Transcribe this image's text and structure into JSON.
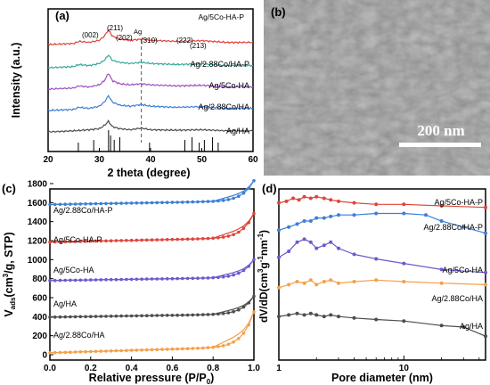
{
  "chart_data": [
    {
      "panel": "(a)",
      "type": "line",
      "xlabel": "2 theta (degree)",
      "ylabel": "Intensity (a.u.)",
      "xlim": [
        20,
        60
      ],
      "xticks": [
        20,
        30,
        40,
        50,
        60
      ],
      "series": [
        {
          "name": "Ag/HA",
          "color": "#4d4d4d",
          "x": [
            20,
            25,
            28,
            30,
            31,
            31.8,
            32.5,
            34,
            36,
            38.2,
            40,
            45,
            50,
            55,
            60
          ],
          "y": [
            0,
            0.5,
            1,
            1.5,
            3,
            5,
            2.5,
            1.5,
            1,
            1.8,
            1,
            0.8,
            1,
            0.5,
            0.5
          ]
        },
        {
          "name": "Ag/2.88Co/HA",
          "color": "#3b7fd6",
          "x": [
            20,
            25,
            26,
            28,
            30,
            31,
            31.8,
            32.5,
            34,
            36,
            38.2,
            40,
            45,
            50,
            55,
            60
          ],
          "y": [
            0,
            0.5,
            1.5,
            1,
            2,
            4,
            7,
            4,
            2.5,
            2,
            2.8,
            2,
            1.5,
            1.8,
            1,
            1
          ]
        },
        {
          "name": "Ag/5Co-HA",
          "color": "#9b4fc0",
          "x": [
            20,
            25,
            26,
            28,
            30,
            31,
            31.8,
            32.5,
            34,
            36,
            38.2,
            40,
            45,
            50,
            55,
            60
          ],
          "y": [
            0,
            0.5,
            1.5,
            1,
            2,
            4,
            7.5,
            4,
            2.5,
            2,
            2.5,
            2,
            1.5,
            1.8,
            1,
            1
          ]
        },
        {
          "name": "Ag/2.88Co/HA-P",
          "color": "#35a89a",
          "x": [
            20,
            25,
            26,
            28,
            30,
            31,
            31.8,
            32.5,
            34,
            36,
            38.2,
            40,
            45,
            50,
            55,
            60
          ],
          "y": [
            0,
            0.5,
            1.5,
            1,
            2,
            3.5,
            6,
            3.5,
            2.5,
            2,
            2.5,
            2,
            1.5,
            1.8,
            1,
            1
          ]
        },
        {
          "name": "Ag/5Co-HA-P",
          "color": "#e0443a",
          "x": [
            20,
            25,
            26,
            28,
            30,
            31,
            31.8,
            32.5,
            34,
            36,
            38.2,
            40,
            45,
            50,
            55,
            60
          ],
          "y": [
            0,
            0.5,
            1.5,
            1,
            2,
            4,
            7,
            4,
            2.5,
            2,
            2.5,
            2,
            1.5,
            1.8,
            1,
            1
          ]
        }
      ],
      "peak_labels": [
        "(002)",
        "(211)",
        "(202)",
        "Ag",
        "(310)",
        "(222)",
        "(213)"
      ],
      "reference_lines_x": [
        25.9,
        28.9,
        31.8,
        32.2,
        32.9,
        34.0,
        39.8,
        46.7,
        48.1,
        49.5,
        50.5,
        52.1,
        53.2
      ],
      "dashed_line_x": 38.2
    },
    {
      "panel": "(b)",
      "type": "image",
      "scale_label": "200 nm"
    },
    {
      "panel": "(c)",
      "type": "line",
      "xlabel": "Relative pressure (P/P",
      "xlabel_sub": "0",
      "ylabel_main": "V",
      "ylabel_sub": "ads",
      "ylabel_rest": "(cm",
      "ylabel_sup": "3",
      "ylabel_end": "/g,  STP)",
      "xlim": [
        0,
        1
      ],
      "ylim": [
        0,
        1800
      ],
      "xticks": [
        0.0,
        0.2,
        0.4,
        0.6,
        0.8,
        1.0
      ],
      "yticks": [
        0,
        200,
        400,
        600,
        800,
        1000,
        1200,
        1400,
        1600,
        1800
      ],
      "series": [
        {
          "name": "Ag/2.88Co/HA-P",
          "color": "#3b7fd6",
          "base": 1580,
          "rise": 250
        },
        {
          "name": "Ag/5Co-HA-P",
          "color": "#e0443a",
          "base": 1185,
          "rise": 300
        },
        {
          "name": "Ag/5Co-HA",
          "color": "#6a5acd",
          "base": 780,
          "rise": 220
        },
        {
          "name": "Ag/HA",
          "color": "#4d4d4d",
          "base": 395,
          "rise": 220
        },
        {
          "name": "Ag/2.88Co/HA",
          "color": "#f5a04a",
          "base": 20,
          "rise": 430
        }
      ]
    },
    {
      "panel": "(d)",
      "type": "line",
      "xlabel": "Pore diameter (nm)",
      "ylabel": "dV/dD(cm",
      "ylabel_sup1": "3",
      "ylabel_mid": "g",
      "ylabel_sup2": "-1",
      "ylabel_nm": "nm",
      "ylabel_end": ")",
      "xscale": "log",
      "xlim": [
        1,
        45
      ],
      "xticks": [
        1,
        10
      ],
      "series": [
        {
          "name": "Ag/5Co-HA-P",
          "color": "#e0443a",
          "x": [
            1,
            1.15,
            1.3,
            1.45,
            1.6,
            1.8,
            2,
            2.3,
            2.6,
            3,
            4,
            6,
            10,
            20,
            45
          ],
          "y": [
            4.6,
            4.65,
            4.75,
            4.7,
            4.8,
            4.75,
            4.8,
            4.75,
            4.7,
            4.65,
            4.6,
            4.55,
            4.55,
            4.5,
            4.45
          ]
        },
        {
          "name": "Ag/2.88Co/HA-P",
          "color": "#3b7fd6",
          "x": [
            1,
            1.2,
            1.4,
            1.6,
            1.8,
            2,
            2.3,
            2.6,
            3,
            4,
            6,
            10,
            15,
            20,
            30,
            45
          ],
          "y": [
            3.7,
            3.8,
            3.9,
            4.0,
            4.0,
            4.1,
            4.1,
            4.15,
            4.2,
            4.2,
            4.25,
            4.25,
            4.2,
            4.0,
            3.8,
            3.6
          ]
        },
        {
          "name": "Ag/5Co-HA",
          "color": "#6a5acd",
          "x": [
            1,
            1.2,
            1.4,
            1.6,
            1.8,
            2,
            2.3,
            2.6,
            3,
            4,
            6,
            10,
            20,
            45
          ],
          "y": [
            2.8,
            3.0,
            3.3,
            3.4,
            3.3,
            3.1,
            3.2,
            3.3,
            3.1,
            2.9,
            2.75,
            2.6,
            2.4,
            2.3
          ]
        },
        {
          "name": "Ag/2.88Co/HA",
          "color": "#f5a04a",
          "x": [
            1,
            1.2,
            1.4,
            1.6,
            1.8,
            2,
            2.3,
            2.6,
            3,
            4,
            6,
            10,
            20,
            45
          ],
          "y": [
            1.8,
            1.9,
            2.0,
            1.95,
            2.05,
            1.9,
            2.0,
            2.05,
            1.95,
            2.0,
            2.05,
            2.0,
            1.95,
            1.9
          ]
        },
        {
          "name": "Ag/HA",
          "color": "#4d4d4d",
          "x": [
            1,
            1.2,
            1.4,
            1.6,
            1.8,
            2,
            2.3,
            2.6,
            3,
            4,
            6,
            10,
            20,
            30,
            45
          ],
          "y": [
            0.85,
            0.9,
            0.95,
            0.9,
            0.95,
            0.9,
            0.85,
            0.9,
            0.85,
            0.8,
            0.75,
            0.7,
            0.55,
            0.5,
            0.2
          ]
        }
      ]
    }
  ]
}
